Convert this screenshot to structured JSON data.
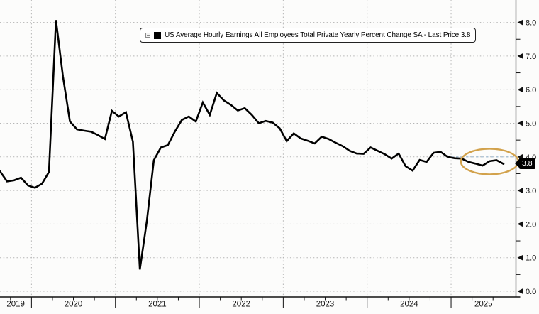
{
  "chart_data": {
    "type": "line",
    "title": "",
    "legend": {
      "label": "US Average Hourly Earnings All Employees Total Private Yearly Percent Change SA - Last Price 3.8",
      "marker_color": "#000000",
      "position": "top-center",
      "toggle_icon": "collapse-minus-box"
    },
    "series_name": "US Average Hourly Earnings All Employees Total Private Yearly Percent Change SA",
    "x": [
      "2019-08",
      "2019-09",
      "2019-10",
      "2019-11",
      "2019-12",
      "2020-01",
      "2020-02",
      "2020-03",
      "2020-04",
      "2020-05",
      "2020-06",
      "2020-07",
      "2020-08",
      "2020-09",
      "2020-10",
      "2020-11",
      "2020-12",
      "2021-01",
      "2021-02",
      "2021-03",
      "2021-04",
      "2021-05",
      "2021-06",
      "2021-07",
      "2021-08",
      "2021-09",
      "2021-10",
      "2021-11",
      "2021-12",
      "2022-01",
      "2022-02",
      "2022-03",
      "2022-04",
      "2022-05",
      "2022-06",
      "2022-07",
      "2022-08",
      "2022-09",
      "2022-10",
      "2022-11",
      "2022-12",
      "2023-01",
      "2023-02",
      "2023-03",
      "2023-04",
      "2023-05",
      "2023-06",
      "2023-07",
      "2023-08",
      "2023-09",
      "2023-10",
      "2023-11",
      "2023-12",
      "2024-01",
      "2024-02",
      "2024-03",
      "2024-04",
      "2024-05",
      "2024-06",
      "2024-07",
      "2024-08",
      "2024-09",
      "2024-10",
      "2024-11",
      "2024-12",
      "2025-01",
      "2025-02",
      "2025-03",
      "2025-04",
      "2025-05",
      "2025-06",
      "2025-07",
      "2025-08"
    ],
    "values": [
      3.57,
      3.27,
      3.3,
      3.38,
      3.15,
      3.08,
      3.2,
      3.55,
      8.07,
      6.4,
      5.05,
      4.82,
      4.78,
      4.75,
      4.65,
      4.53,
      5.37,
      5.2,
      5.33,
      4.45,
      0.65,
      2.1,
      3.9,
      4.28,
      4.35,
      4.75,
      5.1,
      5.2,
      5.05,
      5.62,
      5.25,
      5.9,
      5.68,
      5.55,
      5.38,
      5.45,
      5.25,
      5.0,
      5.07,
      5.02,
      4.85,
      4.47,
      4.7,
      4.55,
      4.48,
      4.4,
      4.6,
      4.53,
      4.42,
      4.32,
      4.18,
      4.1,
      4.09,
      4.28,
      4.18,
      4.08,
      3.95,
      4.1,
      3.72,
      3.59,
      3.91,
      3.85,
      4.12,
      4.15,
      4.0,
      3.96,
      3.95,
      3.85,
      3.8,
      3.74,
      3.87,
      3.9,
      3.79
    ],
    "last_price": 3.8,
    "ylim": [
      0,
      8.3
    ],
    "y_ticks": [
      0,
      1,
      2,
      3,
      4,
      5,
      6,
      7,
      8
    ],
    "y_tick_labels": [
      "0.0",
      "1.0",
      "2.0",
      "3.0",
      "4.0",
      "5.0",
      "6.0",
      "7.0",
      "8.0"
    ],
    "y_minor_tick_step": 0.5,
    "x_axis_years": [
      "2019",
      "2020",
      "2021",
      "2022",
      "2023",
      "2024",
      "2025"
    ],
    "grid": "dotted-horizontal-and-vertical-year-lines",
    "legend_position": "top",
    "colors": {
      "line": "#000000",
      "grid": "#b4b4b4",
      "axis": "#111111",
      "background": "#fcfcfb",
      "highlight_ellipse": "#d2a24c",
      "last_price_line": "#9bb8cf",
      "badge_bg": "#000000",
      "badge_text": "#ffffff"
    },
    "annotations": {
      "highlight_ellipse": {
        "type": "ellipse",
        "center_month": "2025-06",
        "x_radius_months": 4.1,
        "center_value": 3.86,
        "value_radius": 0.38
      },
      "last_price_badge": {
        "label": "3.8",
        "side": "right-axis"
      },
      "last_price_gridline": {
        "value": 4.0,
        "region": "from-2025-to-axis",
        "style": "dashed"
      }
    }
  }
}
